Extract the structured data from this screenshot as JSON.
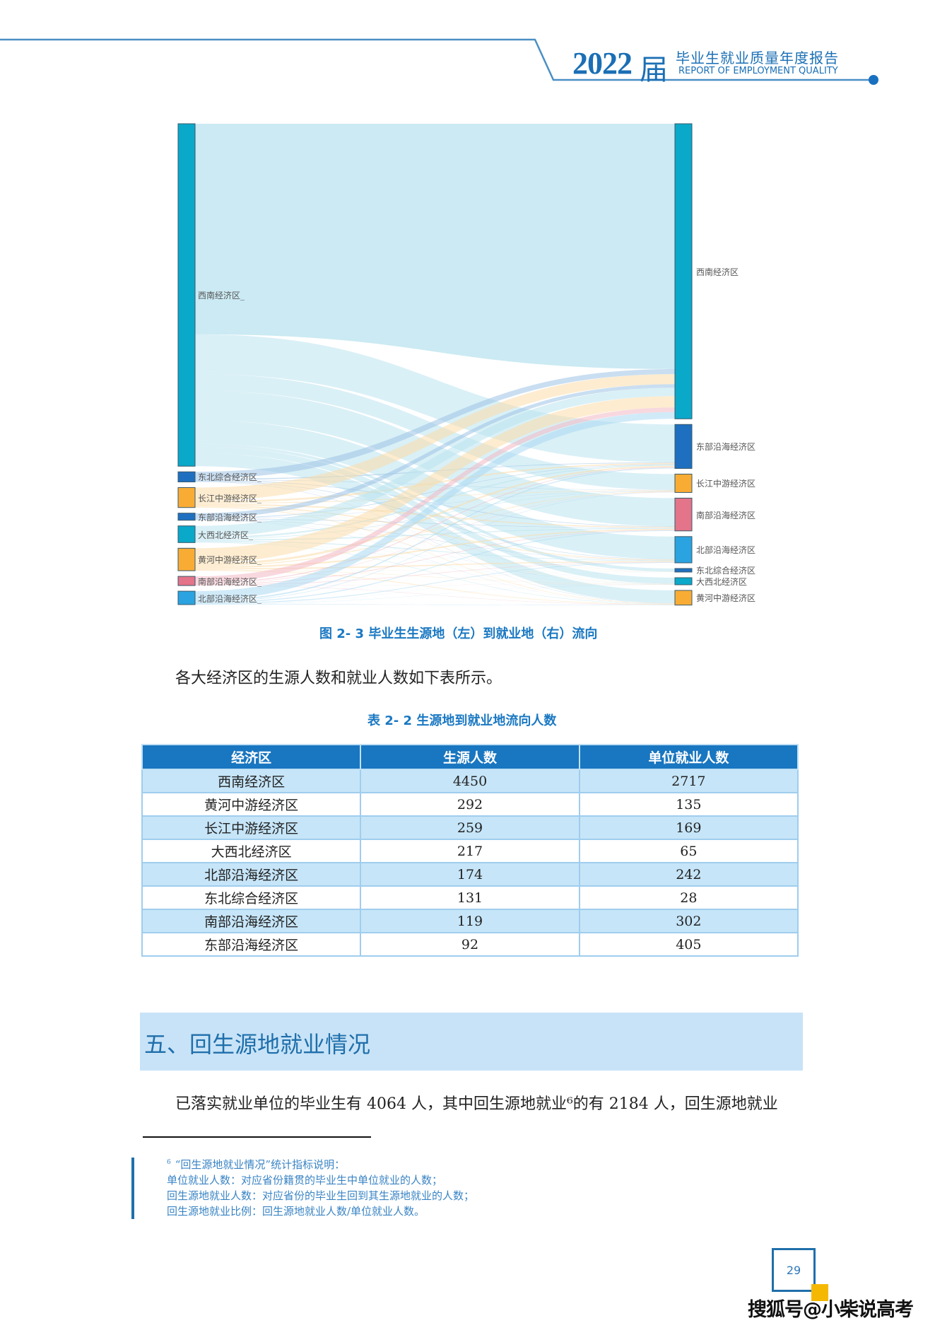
{
  "header": {
    "year": "2022",
    "suffix": "届",
    "title_cn": "毕业生就业质量年度报告",
    "title_en": "REPORT OF EMPLOYMENT QUALITY",
    "line_color": "#4a8fc4",
    "dot_color": "#1a70c0"
  },
  "chart_data": {
    "type": "sankey",
    "title": "图 2-3 毕业生生源地（左）到就业地（右）流向",
    "left_nodes": [
      {
        "name": "西南经济区",
        "value": 4450,
        "color": "#0aa8c9"
      },
      {
        "name": "东北综合经济区",
        "value": 131,
        "color": "#1f6fc0"
      },
      {
        "name": "长江中游经济区",
        "value": 259,
        "color": "#f9ac34"
      },
      {
        "name": "东部沿海经济区",
        "value": 92,
        "color": "#1f6fc0"
      },
      {
        "name": "大西北经济区",
        "value": 217,
        "color": "#0aa8c9"
      },
      {
        "name": "黄河中游经济区",
        "value": 292,
        "color": "#f9ac34"
      },
      {
        "name": "南部沿海经济区",
        "value": 119,
        "color": "#e37489"
      },
      {
        "name": "北部沿海经济区",
        "value": 174,
        "color": "#2aa3e0"
      }
    ],
    "right_nodes": [
      {
        "name": "西南经济区",
        "value": 2717,
        "color": "#0aa8c9"
      },
      {
        "name": "东部沿海经济区",
        "value": 405,
        "color": "#1f6fc0"
      },
      {
        "name": "长江中游经济区",
        "value": 169,
        "color": "#f9ac34"
      },
      {
        "name": "南部沿海经济区",
        "value": 302,
        "color": "#e37489"
      },
      {
        "name": "北部沿海经济区",
        "value": 242,
        "color": "#2aa3e0"
      },
      {
        "name": "东北综合经济区",
        "value": 28,
        "color": "#1f6fc0"
      },
      {
        "name": "大西北经济区",
        "value": 65,
        "color": "#0aa8c9"
      },
      {
        "name": "黄河中游经济区",
        "value": 135,
        "color": "#f9ac34"
      }
    ],
    "left_label_suffix": "_"
  },
  "figure_caption": "图 2- 3  毕业生生源地（左）到就业地（右）流向",
  "intro_paragraph": "各大经济区的生源人数和就业人数如下表所示。",
  "table": {
    "caption": "表 2- 2  生源地到就业地流向人数",
    "headers": [
      "经济区",
      "生源人数",
      "单位就业人数"
    ],
    "rows": [
      [
        "西南经济区",
        "4450",
        "2717"
      ],
      [
        "黄河中游经济区",
        "292",
        "135"
      ],
      [
        "长江中游经济区",
        "259",
        "169"
      ],
      [
        "大西北经济区",
        "217",
        "65"
      ],
      [
        "北部沿海经济区",
        "174",
        "242"
      ],
      [
        "东北综合经济区",
        "131",
        "28"
      ],
      [
        "南部沿海经济区",
        "119",
        "302"
      ],
      [
        "东部沿海经济区",
        "92",
        "405"
      ]
    ]
  },
  "section": {
    "title": "五、回生源地就业情况",
    "paragraph": "已落实就业单位的毕业生有 4064 人，其中回生源地就业⁶的有 2184 人，回生源地就业"
  },
  "footnote": {
    "number": "6",
    "lines": [
      "“回生源地就业情况”统计指标说明：",
      "单位就业人数：对应省份籍贯的毕业生中单位就业的人数；",
      "回生源地就业人数：对应省份的毕业生回到其生源地就业的人数；",
      "回生源地就业比例：回生源地就业人数/单位就业人数。"
    ]
  },
  "page_number": "29",
  "watermark": "搜狐号@小柴说高考"
}
